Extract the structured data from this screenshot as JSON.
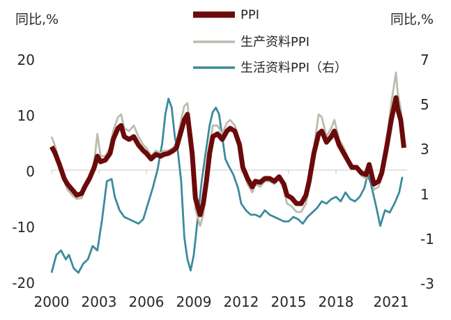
{
  "chart_data": {
    "type": "line",
    "left_unit": "同比,%",
    "right_unit": "同比,%",
    "left_axis": {
      "range": [
        -20,
        20
      ],
      "ticks": [
        20,
        10,
        0,
        -10,
        -20
      ],
      "tick_labels": [
        "20",
        "10",
        "0",
        "-10",
        "-20"
      ]
    },
    "right_axis": {
      "range": [
        -3,
        7
      ],
      "ticks": [
        7,
        5,
        3,
        1,
        -1,
        -3
      ],
      "tick_labels": [
        "7",
        "5",
        "3",
        "1",
        "-1",
        "-3"
      ]
    },
    "x_axis": {
      "range": [
        2000,
        2022.5
      ],
      "ticks": [
        2000,
        2003,
        2006,
        2009,
        2012,
        2015,
        2018,
        2021
      ],
      "tick_labels": [
        "2000",
        "2003",
        "2006",
        "2009",
        "2012",
        "2015",
        "2018",
        "2021"
      ]
    },
    "series": [
      {
        "name": "PPI",
        "axis": "left",
        "color": "#6b0a0a",
        "x": [
          2000.0,
          2000.2,
          2000.5,
          2000.8,
          2001.0,
          2001.3,
          2001.6,
          2001.9,
          2002.1,
          2002.4,
          2002.7,
          2002.9,
          2003.1,
          2003.4,
          2003.7,
          2003.9,
          2004.2,
          2004.4,
          2004.6,
          2004.9,
          2005.2,
          2005.5,
          2005.8,
          2006.0,
          2006.3,
          2006.6,
          2006.9,
          2007.1,
          2007.4,
          2007.7,
          2007.9,
          2008.2,
          2008.4,
          2008.6,
          2008.9,
          2009.1,
          2009.4,
          2009.6,
          2009.8,
          2010.0,
          2010.2,
          2010.5,
          2010.8,
          2011.1,
          2011.3,
          2011.6,
          2011.9,
          2012.1,
          2012.4,
          2012.7,
          2012.9,
          2013.2,
          2013.5,
          2013.8,
          2014.1,
          2014.4,
          2014.7,
          2014.9,
          2015.2,
          2015.5,
          2015.8,
          2016.1,
          2016.3,
          2016.6,
          2016.9,
          2017.1,
          2017.4,
          2017.7,
          2017.9,
          2018.2,
          2018.5,
          2018.8,
          2019.0,
          2019.3,
          2019.6,
          2019.9,
          2020.1,
          2020.4,
          2020.7,
          2020.9,
          2021.2,
          2021.5,
          2021.8,
          2021.9,
          2022.1,
          2022.3
        ],
        "values": [
          4.2,
          3.2,
          1.0,
          -1.5,
          -2.5,
          -3.5,
          -4.5,
          -4.2,
          -3.0,
          -1.5,
          0.5,
          2.5,
          1.5,
          1.8,
          3.0,
          5.5,
          7.5,
          8.0,
          6.0,
          5.5,
          6.0,
          4.5,
          3.5,
          3.0,
          2.0,
          2.8,
          2.5,
          2.8,
          3.0,
          3.5,
          4.0,
          7.0,
          9.0,
          10.0,
          3.0,
          -5.0,
          -8.0,
          -6.0,
          -2.0,
          3.0,
          6.0,
          6.5,
          5.5,
          7.0,
          7.5,
          7.0,
          4.5,
          0.5,
          -1.5,
          -3.0,
          -2.0,
          -2.2,
          -1.5,
          -1.5,
          -2.0,
          -1.2,
          -2.5,
          -4.5,
          -5.0,
          -6.0,
          -6.0,
          -4.5,
          -2.0,
          3.0,
          6.5,
          7.0,
          5.0,
          6.0,
          7.0,
          4.5,
          3.0,
          1.5,
          0.5,
          0.5,
          -0.5,
          -0.8,
          1.0,
          -2.5,
          -2.0,
          -0.5,
          4.0,
          9.0,
          13.0,
          11.0,
          9.0,
          4.0
        ]
      },
      {
        "name": "生产资料PPI",
        "axis": "left",
        "color": "#bcbbad",
        "x": [
          2000.0,
          2000.2,
          2000.5,
          2000.8,
          2001.0,
          2001.3,
          2001.6,
          2001.9,
          2002.1,
          2002.4,
          2002.7,
          2002.9,
          2003.1,
          2003.4,
          2003.7,
          2003.9,
          2004.2,
          2004.4,
          2004.6,
          2004.9,
          2005.2,
          2005.5,
          2005.8,
          2006.0,
          2006.3,
          2006.6,
          2006.9,
          2007.1,
          2007.4,
          2007.7,
          2007.9,
          2008.2,
          2008.4,
          2008.6,
          2008.9,
          2009.1,
          2009.4,
          2009.6,
          2009.8,
          2010.0,
          2010.2,
          2010.5,
          2010.8,
          2011.1,
          2011.3,
          2011.6,
          2011.9,
          2012.1,
          2012.4,
          2012.7,
          2012.9,
          2013.2,
          2013.5,
          2013.8,
          2014.1,
          2014.4,
          2014.7,
          2014.9,
          2015.2,
          2015.5,
          2015.8,
          2016.1,
          2016.3,
          2016.6,
          2016.9,
          2017.1,
          2017.4,
          2017.7,
          2017.9,
          2018.2,
          2018.5,
          2018.8,
          2019.0,
          2019.3,
          2019.6,
          2019.9,
          2020.1,
          2020.4,
          2020.7,
          2020.9,
          2021.2,
          2021.5,
          2021.8,
          2021.9,
          2022.1,
          2022.3
        ],
        "values": [
          6.0,
          4.5,
          1.5,
          -2.0,
          -3.5,
          -4.5,
          -5.2,
          -5.0,
          -3.5,
          -1.5,
          1.5,
          6.5,
          2.5,
          2.5,
          4.0,
          7.0,
          9.5,
          10.0,
          7.5,
          7.0,
          8.0,
          6.0,
          4.5,
          4.0,
          2.5,
          3.5,
          3.0,
          3.5,
          3.5,
          4.0,
          5.0,
          9.0,
          11.5,
          12.0,
          4.0,
          -7.0,
          -10.0,
          -8.0,
          -3.0,
          4.0,
          8.0,
          8.0,
          6.5,
          8.5,
          9.0,
          8.0,
          5.0,
          0.0,
          -2.5,
          -4.0,
          -2.5,
          -3.0,
          -2.0,
          -2.0,
          -2.5,
          -1.5,
          -3.5,
          -6.0,
          -6.5,
          -7.5,
          -7.5,
          -6.0,
          -2.5,
          4.0,
          10.0,
          9.5,
          6.0,
          7.5,
          9.0,
          5.5,
          4.0,
          2.0,
          0.5,
          0.5,
          -1.0,
          -1.5,
          1.0,
          -3.5,
          -3.0,
          -1.0,
          5.0,
          12.0,
          17.5,
          14.0,
          11.0,
          5.0
        ]
      },
      {
        "name": "生活资料PPI（右）",
        "axis": "right",
        "color": "#3c8a9c",
        "x": [
          2000.0,
          2000.3,
          2000.6,
          2000.9,
          2001.1,
          2001.4,
          2001.7,
          2002.0,
          2002.3,
          2002.6,
          2002.9,
          2003.2,
          2003.5,
          2003.8,
          2004.0,
          2004.3,
          2004.6,
          2004.9,
          2005.2,
          2005.5,
          2005.8,
          2006.1,
          2006.4,
          2006.7,
          2007.0,
          2007.2,
          2007.4,
          2007.6,
          2007.8,
          2008.0,
          2008.2,
          2008.4,
          2008.6,
          2008.8,
          2009.0,
          2009.2,
          2009.5,
          2009.8,
          2010.0,
          2010.2,
          2010.4,
          2010.6,
          2010.8,
          2011.0,
          2011.2,
          2011.5,
          2011.8,
          2012.0,
          2012.3,
          2012.6,
          2012.9,
          2013.2,
          2013.5,
          2013.8,
          2014.1,
          2014.4,
          2014.7,
          2015.0,
          2015.3,
          2015.6,
          2015.9,
          2016.2,
          2016.5,
          2016.8,
          2017.1,
          2017.4,
          2017.7,
          2018.0,
          2018.3,
          2018.6,
          2018.9,
          2019.2,
          2019.5,
          2019.8,
          2020.0,
          2020.2,
          2020.5,
          2020.8,
          2021.1,
          2021.4,
          2021.7,
          2022.0,
          2022.2
        ],
        "values": [
          -2.6,
          -1.8,
          -1.6,
          -2.0,
          -1.8,
          -2.4,
          -2.6,
          -2.2,
          -2.0,
          -1.4,
          -1.6,
          -0.2,
          1.5,
          1.6,
          0.8,
          0.2,
          -0.1,
          -0.2,
          -0.3,
          -0.4,
          -0.2,
          0.5,
          1.2,
          2.0,
          3.2,
          4.5,
          5.2,
          4.8,
          3.5,
          2.8,
          1.5,
          -1.0,
          -2.0,
          -2.5,
          -1.8,
          -0.5,
          1.5,
          3.0,
          4.0,
          4.6,
          4.8,
          4.5,
          3.5,
          2.5,
          2.2,
          1.8,
          1.2,
          0.5,
          0.2,
          0.0,
          0.0,
          -0.1,
          0.2,
          0.0,
          -0.1,
          -0.2,
          -0.3,
          -0.3,
          -0.1,
          -0.2,
          -0.4,
          -0.1,
          0.1,
          0.3,
          0.6,
          0.5,
          0.7,
          0.8,
          0.6,
          1.0,
          0.7,
          0.6,
          0.8,
          1.2,
          1.8,
          1.4,
          0.5,
          -0.5,
          0.2,
          0.1,
          0.5,
          1.0,
          1.7
        ]
      }
    ]
  }
}
